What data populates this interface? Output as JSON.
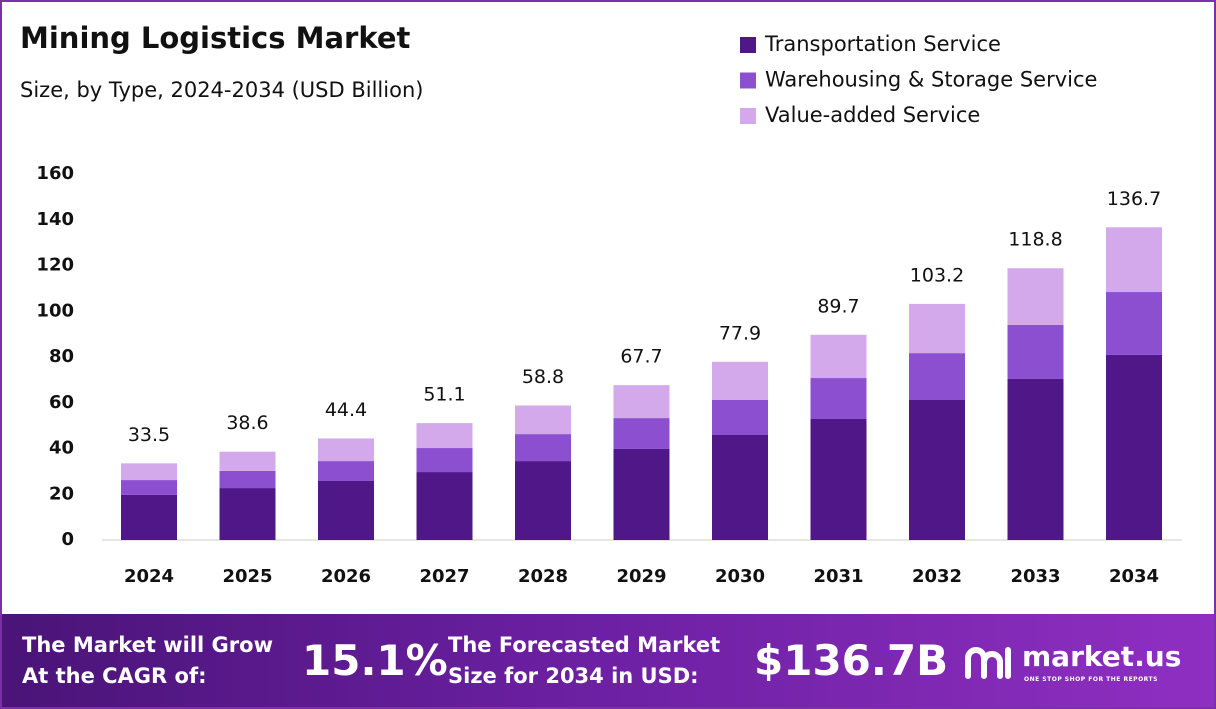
{
  "chart_data": {
    "type": "stacked-bar",
    "title": "Mining Logistics Market",
    "subtitle": "Size, by Type, 2024-2034 (USD Billion)",
    "categories": [
      "2024",
      "2025",
      "2026",
      "2027",
      "2028",
      "2029",
      "2030",
      "2031",
      "2032",
      "2033",
      "2034"
    ],
    "series": [
      {
        "name": "Transportation Service",
        "color": "#4f1787",
        "values": [
          19.7,
          22.7,
          25.8,
          29.7,
          34.5,
          39.8,
          45.9,
          52.9,
          61.2,
          70.4,
          80.9
        ]
      },
      {
        "name": "Warehousing & Storage Service",
        "color": "#8b4fd0",
        "values": [
          6.5,
          7.5,
          8.7,
          10.5,
          11.8,
          13.5,
          15.3,
          17.9,
          20.5,
          23.6,
          27.5
        ]
      },
      {
        "name": "Value-added Service",
        "color": "#d4a9ec",
        "values": [
          7.3,
          8.4,
          9.9,
          10.9,
          12.5,
          14.4,
          16.7,
          18.9,
          21.5,
          24.8,
          28.3
        ]
      }
    ],
    "totals": [
      33.5,
      38.6,
      44.4,
      51.1,
      58.8,
      67.7,
      77.9,
      89.7,
      103.2,
      118.8,
      136.7
    ],
    "ylim": [
      0,
      160
    ],
    "yticks": [
      0,
      20,
      40,
      60,
      80,
      100,
      120,
      140,
      160
    ],
    "grid": false,
    "legend": "top-right"
  },
  "footer": {
    "cagr_text_1": "The Market will Grow",
    "cagr_text_2": "At the CAGR of:",
    "cagr": "15.1%",
    "forecast_text_1": "The Forecasted Market",
    "forecast_text_2": "Size for 2034 in USD:",
    "forecast": "$136.7B",
    "brand": "market.us",
    "tagline": "ONE STOP SHOP FOR THE REPORTS"
  }
}
